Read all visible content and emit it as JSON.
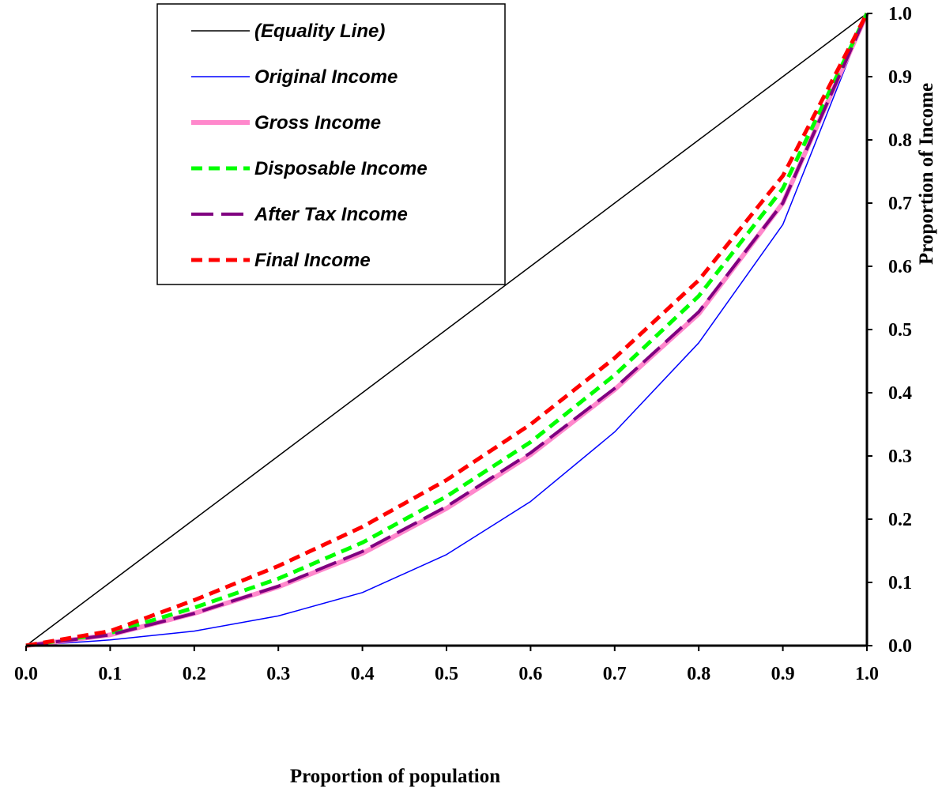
{
  "chart_data": {
    "type": "line",
    "xlabel": "Proportion of population",
    "ylabel": "Proportion of Income",
    "xlim": [
      0,
      1
    ],
    "ylim": [
      0,
      1
    ],
    "x_ticks": [
      "0.0",
      "0.1",
      "0.2",
      "0.3",
      "0.4",
      "0.5",
      "0.6",
      "0.7",
      "0.8",
      "0.9",
      "1.0"
    ],
    "y_ticks": [
      "0.0",
      "0.1",
      "0.2",
      "0.3",
      "0.4",
      "0.5",
      "0.6",
      "0.7",
      "0.8",
      "0.9",
      "1.0"
    ],
    "y_axis_side": "right",
    "grid": false,
    "legend_position": "top-left",
    "x": [
      0.0,
      0.1,
      0.2,
      0.3,
      0.4,
      0.5,
      0.6,
      0.7,
      0.8,
      0.9,
      1.0
    ],
    "series": [
      {
        "name": "(Equality Line)",
        "color": "#000000",
        "style": "solid",
        "values": [
          0.0,
          0.1,
          0.2,
          0.3,
          0.4,
          0.5,
          0.6,
          0.7,
          0.8,
          0.9,
          1.0
        ]
      },
      {
        "name": "Original Income",
        "color": "#0000ff",
        "style": "solid",
        "values": [
          0.0,
          0.009,
          0.023,
          0.047,
          0.084,
          0.144,
          0.228,
          0.338,
          0.479,
          0.666,
          1.0
        ]
      },
      {
        "name": "Gross Income",
        "color": "#ff88cc",
        "style": "thick-solid",
        "values": [
          0.0,
          0.017,
          0.051,
          0.093,
          0.146,
          0.217,
          0.302,
          0.405,
          0.525,
          0.7,
          1.0
        ]
      },
      {
        "name": "Disposable Income",
        "color": "#00ff00",
        "style": "dashed",
        "values": [
          0.0,
          0.02,
          0.06,
          0.106,
          0.163,
          0.236,
          0.322,
          0.428,
          0.553,
          0.723,
          1.0
        ]
      },
      {
        "name": "After Tax Income",
        "color": "#800080",
        "style": "long-dash",
        "values": [
          0.0,
          0.017,
          0.051,
          0.094,
          0.149,
          0.22,
          0.305,
          0.407,
          0.528,
          0.7,
          1.0
        ]
      },
      {
        "name": "Final Income",
        "color": "#ff0000",
        "style": "dashed",
        "values": [
          0.0,
          0.023,
          0.072,
          0.126,
          0.188,
          0.262,
          0.35,
          0.455,
          0.578,
          0.743,
          1.0
        ]
      }
    ]
  }
}
